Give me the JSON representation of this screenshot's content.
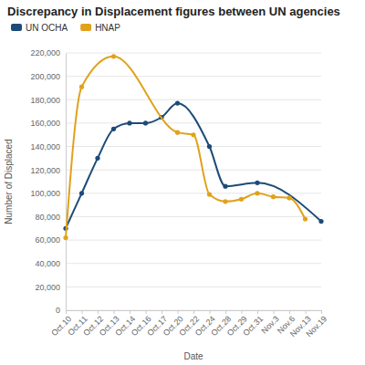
{
  "chart_data": {
    "type": "line",
    "title": "Discrepancy in Displacement figures between UN agencies",
    "x_label": "Date",
    "y_label": "Number of Displaced",
    "categories": [
      "Oct.10",
      "Oct.11",
      "Oct.12",
      "Oct.13",
      "Oct.14",
      "Oct.16",
      "Oct.17",
      "Oct.20",
      "Oct.22",
      "Oct.24",
      "Oct.28",
      "Oct.29",
      "Oct.31",
      "Nov.3",
      "Nov.6",
      "Nov.13",
      "Nov.19"
    ],
    "series": [
      {
        "name": "UN OCHA",
        "color": "#1d4b78",
        "values": [
          70000,
          100000,
          130000,
          155000,
          160000,
          160000,
          165000,
          177000,
          null,
          140000,
          106000,
          null,
          109000,
          null,
          null,
          null,
          76000
        ]
      },
      {
        "name": "HNAP",
        "color": "#e0a21b",
        "values": [
          62000,
          191000,
          null,
          217000,
          null,
          null,
          null,
          152000,
          150000,
          99000,
          93000,
          95000,
          100000,
          97000,
          96000,
          78000,
          null
        ]
      }
    ],
    "marker": "circle",
    "ylim": [
      0,
      220000
    ],
    "yticks": [
      {
        "value": 0,
        "label": "0"
      },
      {
        "value": 20000,
        "label": "20,000"
      },
      {
        "value": 40000,
        "label": "40,000"
      },
      {
        "value": 60000,
        "label": "60,000"
      },
      {
        "value": 80000,
        "label": "80,000"
      },
      {
        "value": 100000,
        "label": "100,000"
      },
      {
        "value": 120000,
        "label": "120,000"
      },
      {
        "value": 140000,
        "label": "140,000"
      },
      {
        "value": 160000,
        "label": "160,000"
      },
      {
        "value": 180000,
        "label": "180,000"
      },
      {
        "value": 200000,
        "label": "200,000"
      },
      {
        "value": 220000,
        "label": "220,000"
      }
    ],
    "grid": true,
    "legend": "top-left"
  }
}
